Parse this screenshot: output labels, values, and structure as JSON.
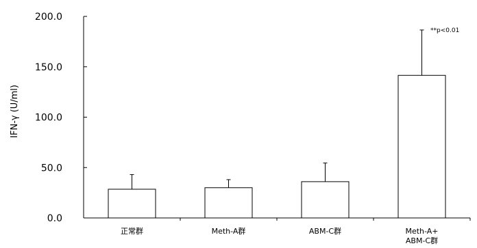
{
  "chart_data": {
    "type": "bar",
    "title": "",
    "xlabel": "",
    "ylabel": "IFN-γ (U/ml)",
    "ylim": [
      0,
      200
    ],
    "yticks": [
      "0.0",
      "50.0",
      "100.0",
      "150.0",
      "200.0"
    ],
    "categories": [
      [
        "正常群"
      ],
      [
        "Meth-A群"
      ],
      [
        "ABM-C群"
      ],
      [
        "Meth-A+",
        "ABM-C群"
      ]
    ],
    "values": [
      28.5,
      30.0,
      36.0,
      141.5
    ],
    "error_upper": [
      14.5,
      8.0,
      18.5,
      45.0
    ],
    "annotation": "**p<0.01",
    "grid": false,
    "legend": "none",
    "colors": {
      "bar_fill": "#ffffff",
      "bar_stroke": "#000000",
      "axis": "#000000"
    }
  }
}
